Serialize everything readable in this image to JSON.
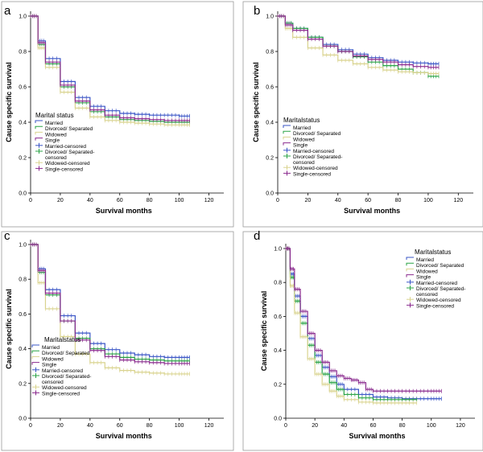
{
  "chart_data": [
    {
      "panel": "a",
      "type": "line",
      "xlabel": "Survival months",
      "ylabel": "Cause specific survival",
      "xticks": [
        0,
        20,
        40,
        60,
        80,
        100,
        120
      ],
      "yticks": [
        "0.0",
        "0.2",
        "0.4",
        "0.6",
        "0.8",
        "1.0"
      ],
      "xlim": [
        0,
        120
      ],
      "ylim": [
        0,
        1.0
      ],
      "legend_title": "Marital status",
      "legend": [
        "Married",
        "Divorced/ Separated",
        "Widowed",
        "Single",
        "Married-censored",
        "Divorced/ Separated-censored",
        "Widowed-censored",
        "Single-censored"
      ],
      "series": [
        {
          "name": "Married",
          "color": "#3a55c6",
          "x": [
            0,
            5,
            10,
            20,
            30,
            40,
            50,
            60,
            70,
            80,
            90,
            100,
            107
          ],
          "y": [
            1.0,
            0.86,
            0.76,
            0.63,
            0.54,
            0.49,
            0.465,
            0.45,
            0.445,
            0.44,
            0.44,
            0.435,
            0.435
          ]
        },
        {
          "name": "Divorced/ Separated",
          "color": "#29a345",
          "x": [
            0,
            5,
            10,
            20,
            30,
            40,
            50,
            60,
            70,
            80,
            90,
            100,
            107
          ],
          "y": [
            1.0,
            0.84,
            0.73,
            0.6,
            0.51,
            0.46,
            0.43,
            0.415,
            0.41,
            0.405,
            0.4,
            0.4,
            0.4
          ]
        },
        {
          "name": "Widowed",
          "color": "#d9d38e",
          "x": [
            0,
            5,
            10,
            20,
            30,
            40,
            50,
            60,
            70,
            80,
            90,
            100,
            107
          ],
          "y": [
            1.0,
            0.82,
            0.71,
            0.57,
            0.48,
            0.43,
            0.41,
            0.4,
            0.395,
            0.39,
            0.385,
            0.385,
            0.385
          ]
        },
        {
          "name": "Single",
          "color": "#8a2a8e",
          "x": [
            0,
            5,
            10,
            20,
            30,
            40,
            50,
            60,
            70,
            80,
            90,
            100,
            107
          ],
          "y": [
            1.0,
            0.85,
            0.74,
            0.61,
            0.52,
            0.47,
            0.44,
            0.425,
            0.42,
            0.415,
            0.41,
            0.41,
            0.41
          ]
        }
      ]
    },
    {
      "panel": "b",
      "type": "line",
      "xlabel": "Survival months",
      "ylabel": "Cause specific survival",
      "xticks": [
        0,
        20,
        40,
        60,
        80,
        100,
        120
      ],
      "yticks": [
        "0.0",
        "0.2",
        "0.4",
        "0.6",
        "0.8",
        "1.0"
      ],
      "xlim": [
        0,
        120
      ],
      "ylim": [
        0,
        1.0
      ],
      "legend_title": "Maritalstatus",
      "legend": [
        "Married",
        "Divorced/ Separated",
        "Widowed",
        "Single",
        "Married-censored",
        "Divorced/ Separated-censored",
        "Widowed-censored",
        "Single-censored"
      ],
      "series": [
        {
          "name": "Married",
          "color": "#3a55c6",
          "x": [
            0,
            5,
            10,
            20,
            30,
            40,
            50,
            60,
            70,
            80,
            90,
            100,
            107
          ],
          "y": [
            1.0,
            0.96,
            0.93,
            0.88,
            0.84,
            0.81,
            0.785,
            0.765,
            0.75,
            0.74,
            0.735,
            0.73,
            0.73
          ]
        },
        {
          "name": "Divorced/ Separated",
          "color": "#29a345",
          "x": [
            0,
            5,
            10,
            20,
            30,
            40,
            50,
            60,
            70,
            80,
            90,
            100,
            107
          ],
          "y": [
            1.0,
            0.96,
            0.93,
            0.88,
            0.83,
            0.8,
            0.77,
            0.74,
            0.72,
            0.7,
            0.68,
            0.66,
            0.66
          ]
        },
        {
          "name": "Widowed",
          "color": "#d9d38e",
          "x": [
            0,
            5,
            10,
            20,
            30,
            40,
            50,
            60,
            70,
            80,
            90,
            100,
            107
          ],
          "y": [
            1.0,
            0.93,
            0.88,
            0.82,
            0.78,
            0.75,
            0.73,
            0.71,
            0.695,
            0.685,
            0.68,
            0.675,
            0.675
          ]
        },
        {
          "name": "Single",
          "color": "#8a2a8e",
          "x": [
            0,
            5,
            10,
            20,
            30,
            40,
            50,
            60,
            70,
            80,
            90,
            100,
            107
          ],
          "y": [
            1.0,
            0.95,
            0.92,
            0.87,
            0.83,
            0.8,
            0.775,
            0.755,
            0.74,
            0.725,
            0.715,
            0.71,
            0.71
          ]
        }
      ]
    },
    {
      "panel": "c",
      "type": "line",
      "xlabel": "Survival months",
      "ylabel": "Cause specific survival",
      "xticks": [
        0,
        20,
        40,
        60,
        80,
        100,
        120
      ],
      "yticks": [
        "0.0",
        "0.2",
        "0.4",
        "0.6",
        "0.8",
        "1.0"
      ],
      "xlim": [
        0,
        120
      ],
      "ylim": [
        0,
        1.0
      ],
      "legend_title": "Maritalstatus",
      "legend": [
        "Married",
        "Divorced/ Separated",
        "Widowed",
        "Single",
        "Married-censored",
        "Divorced/ Separated-censored",
        "Widowed-censored",
        "Single-censored"
      ],
      "series": [
        {
          "name": "Married",
          "color": "#3a55c6",
          "x": [
            0,
            5,
            10,
            20,
            30,
            40,
            50,
            60,
            70,
            80,
            90,
            100,
            107
          ],
          "y": [
            1.0,
            0.86,
            0.74,
            0.59,
            0.49,
            0.43,
            0.395,
            0.375,
            0.365,
            0.355,
            0.35,
            0.35,
            0.35
          ]
        },
        {
          "name": "Divorced/ Separated",
          "color": "#29a345",
          "x": [
            0,
            5,
            10,
            20,
            30,
            40,
            50,
            60,
            70,
            80,
            90,
            100,
            107
          ],
          "y": [
            1.0,
            0.84,
            0.71,
            0.56,
            0.46,
            0.4,
            0.37,
            0.35,
            0.34,
            0.335,
            0.33,
            0.33,
            0.33
          ]
        },
        {
          "name": "Widowed",
          "color": "#d9d38e",
          "x": [
            0,
            5,
            10,
            20,
            30,
            40,
            50,
            60,
            70,
            80,
            90,
            100,
            107
          ],
          "y": [
            1.0,
            0.78,
            0.63,
            0.47,
            0.37,
            0.32,
            0.29,
            0.275,
            0.265,
            0.26,
            0.255,
            0.255,
            0.255
          ]
        },
        {
          "name": "Single",
          "color": "#8a2a8e",
          "x": [
            0,
            5,
            10,
            20,
            30,
            40,
            50,
            60,
            70,
            80,
            90,
            100,
            107
          ],
          "y": [
            1.0,
            0.85,
            0.72,
            0.56,
            0.45,
            0.39,
            0.355,
            0.335,
            0.325,
            0.32,
            0.315,
            0.315,
            0.315
          ]
        }
      ]
    },
    {
      "panel": "d",
      "type": "line",
      "xlabel": "Survival months",
      "ylabel": "Cause specific survival",
      "xticks": [
        0,
        20,
        40,
        60,
        80,
        100,
        120
      ],
      "yticks": [
        "0.0",
        "0.2",
        "0.4",
        "0.6",
        "0.8",
        "1.0"
      ],
      "xlim": [
        0,
        120
      ],
      "ylim": [
        0,
        1.0
      ],
      "legend_title": "Maritalstatus",
      "legend": [
        "Married",
        "Divorced/ Separated",
        "Widowed",
        "Single",
        "Married-censored",
        "Divorced/ Separated-censored",
        "Widowed-censored",
        "Single-censored"
      ],
      "series": [
        {
          "name": "Married",
          "color": "#3a55c6",
          "x": [
            0,
            3,
            6,
            10,
            15,
            20,
            25,
            30,
            35,
            40,
            50,
            60,
            70,
            80,
            90,
            100,
            107
          ],
          "y": [
            1.0,
            0.85,
            0.72,
            0.6,
            0.47,
            0.37,
            0.3,
            0.245,
            0.2,
            0.17,
            0.14,
            0.125,
            0.12,
            0.115,
            0.115,
            0.115,
            0.115
          ]
        },
        {
          "name": "Divorced/ Separated",
          "color": "#29a345",
          "x": [
            0,
            3,
            6,
            10,
            15,
            20,
            25,
            30,
            35,
            40,
            50,
            60,
            70,
            80,
            90
          ],
          "y": [
            1.0,
            0.83,
            0.69,
            0.56,
            0.43,
            0.33,
            0.26,
            0.21,
            0.17,
            0.14,
            0.12,
            0.11,
            0.11,
            0.11,
            0.11
          ]
        },
        {
          "name": "Widowed",
          "color": "#d9d38e",
          "x": [
            0,
            3,
            6,
            10,
            15,
            20,
            25,
            30,
            35,
            40,
            50,
            60,
            70,
            80,
            90
          ],
          "y": [
            1.0,
            0.78,
            0.62,
            0.48,
            0.35,
            0.26,
            0.2,
            0.16,
            0.13,
            0.11,
            0.095,
            0.09,
            0.09,
            0.09,
            0.09
          ]
        },
        {
          "name": "Single",
          "color": "#8a2a8e",
          "x": [
            0,
            3,
            6,
            10,
            15,
            20,
            25,
            30,
            35,
            40,
            45,
            50,
            55,
            60,
            70,
            80,
            90,
            100,
            107
          ],
          "y": [
            1.0,
            0.88,
            0.76,
            0.63,
            0.5,
            0.4,
            0.33,
            0.28,
            0.25,
            0.235,
            0.225,
            0.21,
            0.17,
            0.16,
            0.16,
            0.16,
            0.16,
            0.16,
            0.16
          ]
        }
      ]
    }
  ]
}
